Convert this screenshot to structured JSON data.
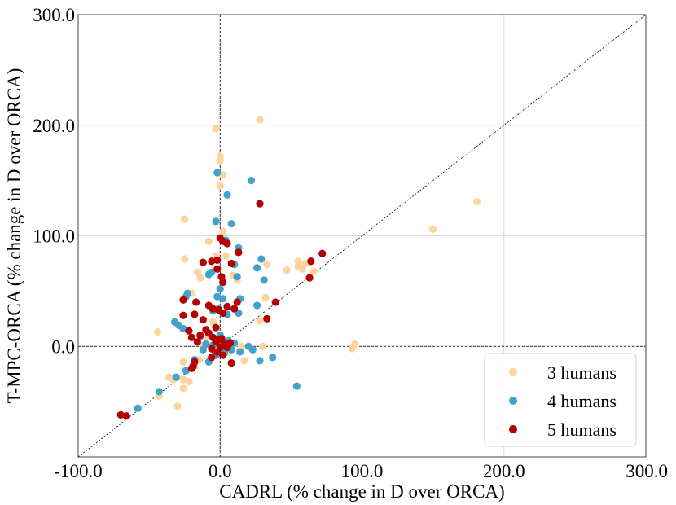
{
  "chart_data": {
    "type": "scatter",
    "xlabel": "CADRL (% change in D over ORCA)",
    "ylabel": "T-MPC-ORCA (% change in D over ORCA)",
    "xlim": [
      -100,
      300
    ],
    "ylim": [
      -100,
      300
    ],
    "x_ticks": [
      "-100.0",
      "0.0",
      "100.0",
      "200.0",
      "300.0"
    ],
    "y_ticks": [
      "0.0",
      "100.0",
      "200.0",
      "300.0"
    ],
    "grid": true,
    "diagonal_reference_line": true,
    "zero_reference_lines": true,
    "legend_position": "bottom-right",
    "series": [
      {
        "name": "3 humans",
        "color": "#fdd49e",
        "points": [
          [
            -3,
            197
          ],
          [
            28,
            205
          ],
          [
            0,
            172
          ],
          [
            0,
            168
          ],
          [
            2,
            155
          ],
          [
            0,
            145
          ],
          [
            -25,
            115
          ],
          [
            -25,
            79
          ],
          [
            -16,
            67
          ],
          [
            -14,
            62
          ],
          [
            -20,
            48
          ],
          [
            -8,
            95
          ],
          [
            -3,
            82
          ],
          [
            2,
            104
          ],
          [
            4,
            82
          ],
          [
            9,
            64
          ],
          [
            12,
            60
          ],
          [
            33,
            74
          ],
          [
            47,
            69
          ],
          [
            55,
            72
          ],
          [
            55,
            77
          ],
          [
            58,
            70
          ],
          [
            60,
            75
          ],
          [
            66,
            68
          ],
          [
            32,
            44
          ],
          [
            28,
            23
          ],
          [
            -44,
            13
          ],
          [
            -30,
            20
          ],
          [
            -33,
            -30
          ],
          [
            -36,
            -28
          ],
          [
            -43,
            -45
          ],
          [
            -30,
            -54
          ],
          [
            -26,
            -14
          ],
          [
            -22,
            -32
          ],
          [
            -26,
            -38
          ],
          [
            -26,
            -30
          ],
          [
            -18,
            -18
          ],
          [
            -15,
            -12
          ],
          [
            -10,
            8
          ],
          [
            -5,
            22
          ],
          [
            15,
            0
          ],
          [
            17,
            -13
          ],
          [
            30,
            0
          ],
          [
            93,
            -2
          ],
          [
            95,
            2
          ],
          [
            150,
            106
          ],
          [
            181,
            131
          ],
          [
            -12,
            1
          ],
          [
            6,
            -5
          ],
          [
            -7,
            -10
          ]
        ]
      },
      {
        "name": "4 humans",
        "color": "#43a2ca",
        "points": [
          [
            -2,
            157
          ],
          [
            22,
            150
          ],
          [
            5,
            137
          ],
          [
            -3,
            113
          ],
          [
            8,
            111
          ],
          [
            4,
            96
          ],
          [
            13,
            89
          ],
          [
            -6,
            67
          ],
          [
            -8,
            65
          ],
          [
            10,
            74
          ],
          [
            12,
            63
          ],
          [
            26,
            71
          ],
          [
            29,
            79
          ],
          [
            31,
            60
          ],
          [
            0,
            52
          ],
          [
            -2,
            45
          ],
          [
            2,
            43
          ],
          [
            14,
            43
          ],
          [
            26,
            37
          ],
          [
            -23,
            48
          ],
          [
            -24,
            45
          ],
          [
            -32,
            22
          ],
          [
            -29,
            19
          ],
          [
            -26,
            16
          ],
          [
            -5,
            32
          ],
          [
            -1,
            34
          ],
          [
            5,
            29
          ],
          [
            13,
            30
          ],
          [
            -14,
            9
          ],
          [
            -10,
            2
          ],
          [
            -5,
            1
          ],
          [
            0,
            2
          ],
          [
            6,
            5
          ],
          [
            10,
            3
          ],
          [
            14,
            -5
          ],
          [
            20,
            0
          ],
          [
            23,
            -3
          ],
          [
            28,
            -13
          ],
          [
            37,
            -10
          ],
          [
            54,
            -36
          ],
          [
            -58,
            -56
          ],
          [
            -43,
            -41
          ],
          [
            -31,
            -28
          ],
          [
            -24,
            -22
          ],
          [
            -18,
            -12
          ],
          [
            -8,
            -14
          ],
          [
            -3,
            -8
          ],
          [
            3,
            -6
          ],
          [
            8,
            -3
          ],
          [
            2,
            0
          ],
          [
            -12,
            -3
          ],
          [
            0,
            10
          ]
        ]
      },
      {
        "name": "5 humans",
        "color": "#b30000",
        "points": [
          [
            28,
            129
          ],
          [
            0,
            98
          ],
          [
            2,
            95
          ],
          [
            5,
            93
          ],
          [
            -12,
            76
          ],
          [
            -6,
            77
          ],
          [
            -2,
            78
          ],
          [
            8,
            75
          ],
          [
            13,
            85
          ],
          [
            1,
            63
          ],
          [
            -2,
            70
          ],
          [
            2,
            58
          ],
          [
            72,
            84
          ],
          [
            64,
            77
          ],
          [
            63,
            62
          ],
          [
            39,
            40
          ],
          [
            33,
            25
          ],
          [
            -26,
            42
          ],
          [
            -17,
            40
          ],
          [
            -8,
            37
          ],
          [
            -5,
            34
          ],
          [
            -1,
            33
          ],
          [
            2,
            30
          ],
          [
            5,
            36
          ],
          [
            10,
            34
          ],
          [
            12,
            40
          ],
          [
            -18,
            29
          ],
          [
            -26,
            28
          ],
          [
            -12,
            24
          ],
          [
            -10,
            15
          ],
          [
            -22,
            14
          ],
          [
            -20,
            8
          ],
          [
            -16,
            4
          ],
          [
            -8,
            12
          ],
          [
            -5,
            8
          ],
          [
            -3,
            4
          ],
          [
            -1,
            6
          ],
          [
            1,
            7
          ],
          [
            3,
            2
          ],
          [
            5,
            -1
          ],
          [
            7,
            3
          ],
          [
            -6,
            -2
          ],
          [
            -2,
            -5
          ],
          [
            0,
            -1
          ],
          [
            2,
            -8
          ],
          [
            -18,
            -14
          ],
          [
            -19,
            -18
          ],
          [
            -20,
            -20
          ],
          [
            -14,
            10
          ],
          [
            -3,
            17
          ],
          [
            8,
            -15
          ],
          [
            -70,
            -62
          ],
          [
            -66,
            -63
          ],
          [
            -6,
            -10
          ]
        ]
      }
    ]
  }
}
